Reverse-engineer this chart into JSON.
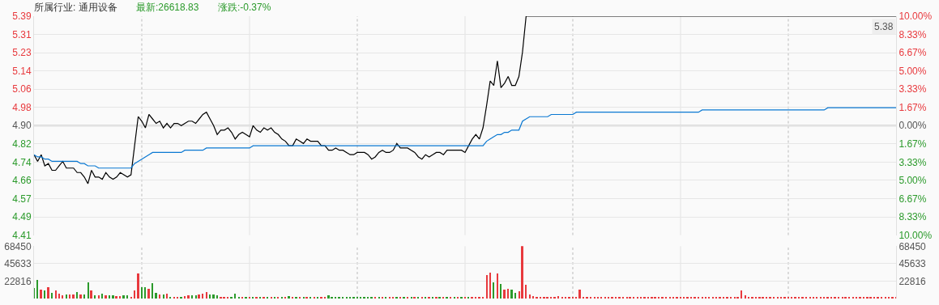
{
  "chart_data": [
    {
      "type": "line",
      "title": "所属行业: 通用设备",
      "annotations": [
        "最新:26618.83",
        "涨跌:-0.37%",
        {
          "text": "5.38",
          "y": 5.38
        }
      ],
      "categories": [
        null,
        null,
        null,
        null,
        null,
        null,
        null,
        null,
        null,
        null,
        null,
        null,
        null,
        null,
        null,
        null,
        null,
        null,
        null,
        null,
        null,
        null,
        null,
        null,
        null,
        null,
        null,
        null,
        null,
        null,
        null,
        null,
        null,
        null,
        null,
        null,
        null,
        null,
        null,
        null,
        null,
        null,
        null,
        null,
        null,
        null,
        null,
        null,
        null,
        null,
        null,
        null,
        null,
        null,
        null,
        null,
        null,
        null,
        null,
        null,
        null,
        null,
        null,
        null,
        null,
        null,
        null,
        null,
        null,
        null,
        null,
        null,
        null,
        null,
        null,
        null,
        null,
        null,
        null,
        null,
        null,
        null,
        null,
        null,
        null,
        null,
        null,
        null,
        null,
        null,
        null,
        null,
        null,
        null,
        null,
        null,
        null,
        null,
        null,
        null,
        null,
        null,
        null,
        null,
        null,
        null,
        null,
        null,
        null,
        null,
        null,
        null,
        null,
        null,
        null,
        null,
        null,
        null,
        null,
        null,
        null,
        null,
        null,
        null,
        null,
        null,
        null,
        null,
        null,
        null,
        null,
        null,
        null,
        null,
        null,
        null,
        null,
        null,
        null,
        null,
        null,
        null,
        null,
        null,
        null,
        null,
        null,
        null,
        null,
        null,
        null,
        null,
        null,
        null,
        null,
        null,
        null,
        null,
        null,
        null,
        null,
        null,
        null,
        null,
        null,
        null,
        null,
        null,
        null,
        null,
        null,
        null,
        null,
        null,
        null,
        null,
        null,
        null,
        null,
        null,
        null,
        null,
        null,
        null,
        null,
        null,
        null,
        null,
        null,
        null,
        null,
        null,
        null,
        null,
        null,
        null,
        null,
        null,
        null,
        null,
        null,
        null,
        null,
        null,
        null,
        null,
        null,
        null,
        null,
        null,
        null,
        null,
        null,
        null,
        null,
        null,
        null,
        null,
        null,
        null,
        null,
        null,
        null,
        null,
        null,
        null,
        null,
        null,
        null,
        null,
        null,
        null,
        null,
        null,
        null,
        null,
        null,
        null,
        null,
        null,
        null
      ],
      "series": [
        {
          "color": "#000000",
          "values": [
            4.77,
            4.74,
            4.77,
            4.72,
            4.73,
            4.7,
            4.7,
            4.72,
            4.74,
            4.71,
            4.71,
            4.71,
            4.69,
            4.69,
            4.67,
            4.64,
            4.7,
            4.67,
            4.67,
            4.66,
            4.69,
            4.67,
            4.66,
            4.67,
            4.69,
            4.68,
            4.67,
            4.68,
            4.81,
            4.94,
            4.92,
            4.89,
            4.95,
            4.93,
            4.91,
            4.92,
            4.89,
            4.91,
            4.89,
            4.91,
            4.91,
            4.9,
            4.91,
            4.92,
            4.92,
            4.91,
            4.93,
            4.95,
            4.96,
            4.93,
            4.9,
            4.86,
            4.88,
            4.88,
            4.89,
            4.87,
            4.84,
            4.86,
            4.87,
            4.86,
            4.85,
            4.9,
            4.88,
            4.87,
            4.89,
            4.88,
            4.89,
            4.87,
            4.86,
            4.84,
            4.83,
            4.81,
            4.81,
            4.84,
            4.83,
            4.82,
            4.84,
            4.83,
            4.83,
            4.83,
            4.81,
            4.81,
            4.79,
            4.79,
            4.8,
            4.79,
            4.79,
            4.78,
            4.77,
            4.77,
            4.78,
            4.78,
            4.78,
            4.77,
            4.75,
            4.76,
            4.78,
            4.79,
            4.78,
            4.78,
            4.79,
            4.82,
            4.8,
            4.8,
            4.8,
            4.79,
            4.78,
            4.76,
            4.75,
            4.77,
            4.76,
            4.77,
            4.78,
            4.78,
            4.77,
            4.79,
            4.79,
            4.79,
            4.79,
            4.79,
            4.78,
            4.81,
            4.84,
            4.86,
            4.84,
            4.89,
            4.99,
            5.1,
            5.08,
            5.19,
            5.07,
            5.09,
            5.12,
            5.08,
            5.08,
            5.12,
            5.23,
            5.39,
            5.39,
            5.39,
            5.39,
            5.39,
            5.39,
            5.39,
            5.39,
            5.39,
            5.39,
            5.39,
            5.39,
            5.39,
            5.39,
            5.39,
            5.39,
            5.39,
            5.39,
            5.39,
            5.39,
            5.39,
            5.39,
            5.39,
            5.39,
            5.39,
            5.39,
            5.39,
            5.39,
            5.39,
            5.39,
            5.39,
            5.39,
            5.39,
            5.39,
            5.39,
            5.39,
            5.39,
            5.39,
            5.39,
            5.39,
            5.39,
            5.39,
            5.39,
            5.39,
            5.39,
            5.39,
            5.39,
            5.39,
            5.39,
            5.39,
            5.39,
            5.39,
            5.39,
            5.39,
            5.39,
            5.39,
            5.39,
            5.39,
            5.39,
            5.39,
            5.39,
            5.39,
            5.39,
            5.39,
            5.39,
            5.39,
            5.39,
            5.39,
            5.39,
            5.39,
            5.39,
            5.39,
            5.39,
            5.39,
            5.39,
            5.39,
            5.39,
            5.39,
            5.39,
            5.39,
            5.39,
            5.39,
            5.39,
            5.39,
            5.39,
            5.39,
            5.39,
            5.39,
            5.39,
            5.39,
            5.39,
            5.39,
            5.39,
            5.39,
            5.39,
            5.39,
            5.39,
            5.39,
            5.39,
            5.39,
            5.39,
            5.39,
            5.39,
            5.39
          ]
        },
        {
          "color": "#0a78d2",
          "values": [
            4.77,
            4.76,
            4.76,
            4.75,
            4.75,
            4.74,
            4.74,
            4.74,
            4.74,
            4.74,
            4.74,
            4.74,
            4.74,
            4.73,
            4.73,
            4.72,
            4.72,
            4.72,
            4.71,
            4.71,
            4.71,
            4.71,
            4.71,
            4.71,
            4.71,
            4.71,
            4.71,
            4.71,
            4.73,
            4.74,
            4.75,
            4.76,
            4.77,
            4.78,
            4.78,
            4.78,
            4.78,
            4.78,
            4.78,
            4.78,
            4.78,
            4.78,
            4.79,
            4.79,
            4.79,
            4.79,
            4.79,
            4.79,
            4.8,
            4.8,
            4.8,
            4.8,
            4.8,
            4.8,
            4.8,
            4.8,
            4.8,
            4.8,
            4.8,
            4.8,
            4.8,
            4.81,
            4.81,
            4.81,
            4.81,
            4.81,
            4.81,
            4.81,
            4.81,
            4.81,
            4.81,
            4.81,
            4.81,
            4.81,
            4.81,
            4.81,
            4.81,
            4.81,
            4.81,
            4.81,
            4.81,
            4.81,
            4.81,
            4.81,
            4.81,
            4.81,
            4.81,
            4.81,
            4.81,
            4.81,
            4.81,
            4.81,
            4.81,
            4.81,
            4.81,
            4.81,
            4.81,
            4.81,
            4.81,
            4.81,
            4.81,
            4.81,
            4.81,
            4.81,
            4.81,
            4.81,
            4.81,
            4.81,
            4.81,
            4.81,
            4.81,
            4.81,
            4.81,
            4.81,
            4.81,
            4.81,
            4.81,
            4.81,
            4.81,
            4.81,
            4.81,
            4.81,
            4.81,
            4.81,
            4.81,
            4.81,
            4.83,
            4.84,
            4.85,
            4.86,
            4.86,
            4.87,
            4.87,
            4.88,
            4.88,
            4.88,
            4.92,
            4.93,
            4.94,
            4.94,
            4.94,
            4.94,
            4.94,
            4.94,
            4.95,
            4.95,
            4.95,
            4.95,
            4.95,
            4.95,
            4.95,
            4.96,
            4.96,
            4.96,
            4.96,
            4.96,
            4.96,
            4.96,
            4.96,
            4.96,
            4.96,
            4.96,
            4.96,
            4.96,
            4.96,
            4.96,
            4.96,
            4.96,
            4.96,
            4.96,
            4.96,
            4.96,
            4.96,
            4.96,
            4.96,
            4.96,
            4.96,
            4.96,
            4.96,
            4.96,
            4.96,
            4.96,
            4.96,
            4.96,
            4.96,
            4.96,
            4.97,
            4.97,
            4.97,
            4.97,
            4.97,
            4.97,
            4.97,
            4.97,
            4.97,
            4.97,
            4.97,
            4.97,
            4.97,
            4.97,
            4.97,
            4.97,
            4.97,
            4.97,
            4.97,
            4.97,
            4.97,
            4.97,
            4.97,
            4.97,
            4.97,
            4.97,
            4.97,
            4.97,
            4.97,
            4.97,
            4.97,
            4.97,
            4.97,
            4.97,
            4.97,
            4.98,
            4.98,
            4.98,
            4.98,
            4.98,
            4.98,
            4.98,
            4.98,
            4.98,
            4.98,
            4.98,
            4.98,
            4.98,
            4.98,
            4.98,
            4.98,
            4.98,
            4.98,
            4.98,
            4.98
          ]
        }
      ],
      "ylim": [
        4.41,
        5.39
      ],
      "yticks": [
        5.39,
        {
          "value": 5.3083,
          "label": "5.31"
        },
        {
          "value": 5.2267,
          "label": "5.23"
        },
        {
          "value": 5.145,
          "label": "5.14"
        },
        {
          "value": 5.0633,
          "label": "5.06"
        },
        {
          "value": 4.9817,
          "label": "4.98"
        },
        {
          "value": 4.9,
          "label": "4.90"
        },
        {
          "value": 4.8183,
          "label": "4.82"
        },
        {
          "value": 4.7367,
          "label": "4.74"
        },
        {
          "value": 4.655,
          "label": "4.66"
        },
        {
          "value": 4.5733,
          "label": "4.57"
        },
        {
          "value": 4.4917,
          "label": "4.49"
        },
        4.41
      ],
      "y2lim": [
        -10,
        10
      ],
      "y2ticks": [
        {
          "value": 10,
          "label": "10.00%"
        },
        {
          "value": 8.33,
          "label": "8.33%"
        },
        {
          "value": 6.67,
          "label": "6.67%"
        },
        {
          "value": 5,
          "label": "5.00%"
        },
        {
          "value": 3.33,
          "label": "3.33%"
        },
        {
          "value": 1.67,
          "label": "1.67%"
        },
        {
          "value": 0,
          "label": "0.00%"
        },
        {
          "value": -1.67,
          "label": "1.67%"
        },
        {
          "value": -3.33,
          "label": "3.33%"
        },
        {
          "value": -5,
          "label": "5.00%"
        },
        {
          "value": -6.67,
          "label": "6.67%"
        },
        {
          "value": -8.33,
          "label": "8.33%"
        },
        {
          "value": -10,
          "label": "10.00%"
        }
      ],
      "ref_lines": [
        {
          "axis": "y",
          "value": 4.9,
          "color": "#dcdcdc",
          "line_style": "solid"
        }
      ],
      "grid": "y",
      "marker": "none",
      "line_style": "solid",
      "tick_labels": "y"
    },
    {
      "type": "bar",
      "categories": [
        null,
        null,
        null,
        null,
        null,
        null,
        null,
        null,
        null,
        null,
        null,
        null,
        null,
        null,
        null,
        null,
        null,
        null,
        null,
        null,
        null,
        null,
        null,
        null,
        null,
        null,
        null,
        null,
        null,
        null,
        null,
        null,
        null,
        null,
        null,
        null,
        null,
        null,
        null,
        null,
        null,
        null,
        null,
        null,
        null,
        null,
        null,
        null,
        null,
        null,
        null,
        null,
        null,
        null,
        null,
        null,
        null,
        null,
        null,
        null,
        null,
        null,
        null,
        null,
        null,
        null,
        null,
        null,
        null,
        null,
        null,
        null,
        null,
        null,
        null,
        null,
        null,
        null,
        null,
        null,
        null,
        null,
        null,
        null,
        null,
        null,
        null,
        null,
        null,
        null,
        null,
        null,
        null,
        null,
        null,
        null,
        null,
        null,
        null,
        null,
        null,
        null,
        null,
        null,
        null,
        null,
        null,
        null,
        null,
        null,
        null,
        null,
        null,
        null,
        null,
        null,
        null,
        null,
        null,
        null,
        null,
        null,
        null,
        null,
        null,
        null,
        null,
        null,
        null,
        null,
        null,
        null,
        null,
        null,
        null,
        null,
        null,
        null,
        null,
        null,
        null,
        null,
        null,
        null,
        null,
        null,
        null,
        null,
        null,
        null,
        null,
        null,
        null,
        null,
        null,
        null,
        null,
        null,
        null,
        null,
        null,
        null,
        null,
        null,
        null,
        null,
        null,
        null,
        null,
        null,
        null,
        null,
        null,
        null,
        null,
        null,
        null,
        null,
        null,
        null,
        null,
        null,
        null,
        null,
        null,
        null,
        null,
        null,
        null,
        null,
        null,
        null,
        null,
        null,
        null,
        null,
        null,
        null,
        null,
        null,
        null,
        null,
        null,
        null,
        null,
        null,
        null,
        null,
        null,
        null,
        null,
        null,
        null,
        null,
        null,
        null,
        null,
        null,
        null,
        null,
        null,
        null,
        null,
        null,
        null,
        null,
        null,
        null,
        null,
        null,
        null,
        null,
        null,
        null,
        null,
        null,
        null,
        null,
        null,
        null,
        null
      ],
      "values": [
        13000,
        24000,
        11000,
        10000,
        14000,
        7000,
        10000,
        6000,
        4000,
        5000,
        5000,
        5000,
        8000,
        5000,
        5000,
        21000,
        10000,
        4000,
        4000,
        6000,
        4000,
        4000,
        4000,
        3000,
        3000,
        4000,
        4000,
        1000,
        10000,
        32000,
        15000,
        15000,
        12000,
        20000,
        7000,
        5000,
        5000,
        6000,
        2000,
        2000,
        1000,
        2000,
        3000,
        4000,
        4000,
        4000,
        5000,
        6000,
        8000,
        5000,
        5000,
        4000,
        2000,
        1000,
        1000,
        1000,
        6000,
        1000,
        1000,
        1000,
        1000,
        1000,
        1000,
        1000,
        1000,
        1000,
        1000,
        1000,
        1000,
        1000,
        1000,
        3000,
        1000,
        1000,
        1000,
        1000,
        1000,
        1000,
        1000,
        1000,
        1000,
        1000,
        4000,
        1000,
        1000,
        1000,
        1000,
        1000,
        1000,
        1000,
        1000,
        1000,
        1000,
        1000,
        1000,
        2000,
        1000,
        1000,
        1000,
        1000,
        1000,
        1000,
        1000,
        1000,
        1000,
        1000,
        1000,
        1000,
        1000,
        1000,
        1000,
        1000,
        1000,
        1000,
        1000,
        1000,
        1000,
        1000,
        1000,
        1000,
        1000,
        1000,
        1000,
        1000,
        1000,
        2000,
        30000,
        34000,
        21000,
        33000,
        19000,
        11000,
        12000,
        11000,
        7000,
        9000,
        68000,
        18000,
        5000,
        3000,
        1000,
        1000,
        1000,
        1000,
        1000,
        1000,
        3000,
        2000,
        1000,
        1000,
        1000,
        1000,
        11000,
        1000,
        1000,
        1000,
        1000,
        1000,
        1000,
        1000,
        1000,
        1000,
        1000,
        1000,
        1000,
        1000,
        1000,
        1000,
        1000,
        1000,
        1000,
        1000,
        1000,
        1000,
        1000,
        1000,
        1000,
        1000,
        1000,
        1000,
        1000,
        1000,
        1000,
        1000,
        1000,
        1000,
        1000,
        1000,
        1000,
        1000,
        1000,
        1000,
        1000,
        1000,
        1000,
        1000,
        1000,
        10000,
        4000,
        1000,
        1000,
        1000,
        1000,
        1000,
        1000,
        1000,
        1000,
        1000,
        1000,
        1000,
        1000,
        1000,
        1000,
        1000,
        1000,
        1000,
        1000,
        1000,
        1000,
        1000,
        1000,
        1000,
        1000,
        1000,
        1000,
        1000,
        1000,
        1000,
        1000,
        1000,
        1000,
        1000,
        2000,
        1000,
        1000,
        1000,
        1000,
        1000,
        1000,
        1000,
        1000
      ],
      "colors": [
        "#2b9a2b",
        "#2b9a2b",
        "#e8393d",
        "#2b9a2b",
        "#e8393d",
        "#2b9a2b",
        "#e8393d",
        "#e8393d",
        "#e8393d",
        "#2b9a2b",
        "#e8393d",
        "#e8393d",
        "#2b9a2b",
        "#e8393d",
        "#2b9a2b",
        "#2b9a2b",
        "#e8393d",
        "#2b9a2b",
        "#e8393d",
        "#2b9a2b",
        "#e8393d",
        "#2b9a2b",
        "#2b9a2b",
        "#e8393d",
        "#e8393d",
        "#2b9a2b",
        "#2b9a2b",
        "#e8393d",
        "#e8393d",
        "#e8393d",
        "#2b9a2b",
        "#2b9a2b",
        "#e8393d",
        "#2b9a2b",
        "#2b9a2b",
        "#e8393d",
        "#2b9a2b",
        "#e8393d",
        "#2b9a2b",
        "#e8393d",
        "#e8393d",
        "#2b9a2b",
        "#e8393d",
        "#e8393d",
        "#2b9a2b",
        "#2b9a2b",
        "#e8393d",
        "#e8393d",
        "#e8393d",
        "#2b9a2b",
        "#2b9a2b",
        "#2b9a2b",
        "#e8393d",
        "#e8393d",
        "#e8393d",
        "#2b9a2b",
        "#2b9a2b",
        "#2b9a2b",
        "#e8393d",
        "#2b9a2b",
        "#e8393d",
        "#2b9a2b",
        "#e8393d",
        "#2b9a2b",
        "#e8393d",
        "#2b9a2b",
        "#e8393d",
        "#2b9a2b",
        "#e8393d",
        "#2b9a2b",
        "#e8393d",
        "#2b9a2b",
        "#e8393d",
        "#2b9a2b",
        "#e8393d",
        "#2b9a2b",
        "#e8393d",
        "#2b9a2b",
        "#e8393d",
        "#2b9a2b",
        "#e8393d",
        "#e8393d",
        "#2b9a2b",
        "#2b9a2b",
        "#2b9a2b",
        "#2b9a2b",
        "#2b9a2b",
        "#2b9a2b",
        "#2b9a2b",
        "#2b9a2b",
        "#2b9a2b",
        "#2b9a2b",
        "#2b9a2b",
        "#2b9a2b",
        "#2b9a2b",
        "#e8393d",
        "#2b9a2b",
        "#e8393d",
        "#2b9a2b",
        "#e8393d",
        "#e8393d",
        "#2b9a2b",
        "#e8393d",
        "#2b9a2b",
        "#e8393d",
        "#2b9a2b",
        "#e8393d",
        "#2b9a2b",
        "#e8393d",
        "#2b9a2b",
        "#e8393d",
        "#2b9a2b",
        "#e8393d",
        "#2b9a2b",
        "#e8393d",
        "#2b9a2b",
        "#e8393d",
        "#2b9a2b",
        "#e8393d",
        "#2b9a2b",
        "#e8393d",
        "#2b9a2b",
        "#e8393d",
        "#e8393d",
        "#e8393d",
        "#e8393d",
        "#e8393d",
        "#e8393d",
        "#2b9a2b",
        "#e8393d",
        "#2b9a2b",
        "#e8393d",
        "#e8393d",
        "#2b9a2b",
        "#2b9a2b",
        "#e8393d",
        "#e8393d",
        "#e8393d",
        "#e8393d",
        "#e8393d",
        "#e8393d",
        "#e8393d",
        "#e8393d",
        "#e8393d",
        "#e8393d",
        "#e8393d",
        "#e8393d",
        "#e8393d",
        "#e8393d",
        "#e8393d",
        "#e8393d",
        "#e8393d",
        "#e8393d",
        "#e8393d",
        "#e8393d",
        "#e8393d",
        "#e8393d",
        "#e8393d",
        "#e8393d",
        "#e8393d",
        "#e8393d",
        "#e8393d",
        "#e8393d",
        "#e8393d",
        "#e8393d",
        "#e8393d",
        "#e8393d",
        "#e8393d",
        "#e8393d",
        "#e8393d",
        "#e8393d",
        "#e8393d",
        "#e8393d",
        "#e8393d",
        "#e8393d",
        "#e8393d",
        "#e8393d",
        "#e8393d",
        "#e8393d",
        "#e8393d",
        "#e8393d",
        "#e8393d",
        "#e8393d",
        "#e8393d",
        "#e8393d",
        "#e8393d",
        "#e8393d",
        "#e8393d",
        "#e8393d",
        "#e8393d",
        "#e8393d",
        "#e8393d",
        "#e8393d",
        "#e8393d",
        "#e8393d",
        "#e8393d",
        "#e8393d",
        "#e8393d",
        "#e8393d",
        "#e8393d",
        "#e8393d",
        "#e8393d",
        "#e8393d",
        "#e8393d",
        "#e8393d",
        "#e8393d",
        "#e8393d",
        "#e8393d",
        "#e8393d",
        "#e8393d",
        "#e8393d",
        "#e8393d",
        "#e8393d",
        "#e8393d",
        "#e8393d",
        "#e8393d",
        "#e8393d",
        "#e8393d",
        "#e8393d",
        "#e8393d",
        "#e8393d",
        "#e8393d",
        "#e8393d",
        "#e8393d",
        "#e8393d",
        "#e8393d",
        "#e8393d",
        "#e8393d",
        "#e8393d",
        "#e8393d",
        "#e8393d",
        "#e8393d",
        "#e8393d",
        "#e8393d",
        "#e8393d",
        "#e8393d",
        "#e8393d",
        "#e8393d",
        "#e8393d",
        "#e8393d",
        "#e8393d"
      ],
      "ylim": [
        0,
        68450
      ],
      "yticks": [
        22816,
        45633,
        68450
      ],
      "y2lim": [
        0,
        68450
      ],
      "y2ticks": [
        22816,
        45633,
        68450
      ],
      "grid": "y",
      "tick_labels": "y"
    }
  ]
}
